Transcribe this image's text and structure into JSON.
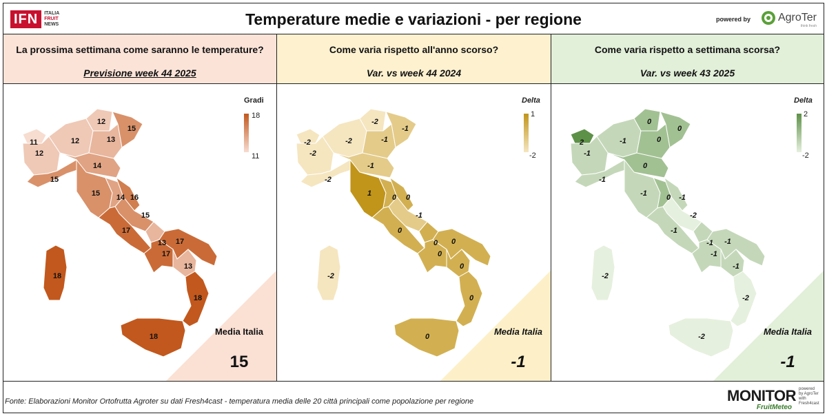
{
  "header": {
    "logo_text": "IFN",
    "logo_sub": [
      "ITALIA",
      "FRUIT",
      "NEWS"
    ],
    "title": "Temperature medie e variazioni - per regione",
    "powered_by": "powered by",
    "brand": "AgroTer",
    "brand_tagline": "think fresh"
  },
  "panels": [
    {
      "question": "La prossima settimana come saranno le temperature?",
      "subtitle": "Previsione week 44 2025",
      "legend_title": "Gradi",
      "legend_max": "18",
      "legend_min": "11",
      "media_label": "Media Italia",
      "media_value": "15",
      "colors": {
        "header": "#fbe3d8",
        "corner": "#fbe0d4",
        "low": "#f7dcd0",
        "high": "#c2581d"
      }
    },
    {
      "question": "Come varia rispetto all'anno scorso?",
      "subtitle": "Var. vs week 44 2024",
      "legend_title": "Delta",
      "legend_max": "1",
      "legend_min": "-2",
      "media_label": "Media Italia",
      "media_value": "-1",
      "colors": {
        "header": "#fdf1d0",
        "corner": "#fdf0c8",
        "low": "#f5e6c0",
        "high": "#c1951a"
      }
    },
    {
      "question": "Come varia rispetto a settimana scorsa?",
      "subtitle": "Var. vs week 43 2025",
      "legend_title": "Delta",
      "legend_max": "2",
      "legend_min": "-2",
      "media_label": "Media Italia",
      "media_value": "-1",
      "colors": {
        "header": "#e2efd9",
        "corner": "#e2efd9",
        "low": "#e6f0de",
        "high": "#5e9148"
      }
    }
  ],
  "regions": [
    {
      "name": "Valle d'Aosta",
      "temp": 11,
      "var_year": -2,
      "var_week": 2
    },
    {
      "name": "Piemonte",
      "temp": 12,
      "var_year": -2,
      "var_week": -1
    },
    {
      "name": "Lombardia",
      "temp": 12,
      "var_year": -2,
      "var_week": -1
    },
    {
      "name": "Trentino-Alto Adige",
      "temp": 12,
      "var_year": -2,
      "var_week": 0
    },
    {
      "name": "Veneto",
      "temp": 13,
      "var_year": -1,
      "var_week": 0
    },
    {
      "name": "Friuli-Venezia Giulia",
      "temp": 15,
      "var_year": -1,
      "var_week": 0
    },
    {
      "name": "Liguria",
      "temp": 15,
      "var_year": -2,
      "var_week": -1
    },
    {
      "name": "Emilia-Romagna",
      "temp": 14,
      "var_year": -1,
      "var_week": 0
    },
    {
      "name": "Toscana",
      "temp": 15,
      "var_year": 1,
      "var_week": -1
    },
    {
      "name": "Umbria",
      "temp": 14,
      "var_year": 0,
      "var_week": 0
    },
    {
      "name": "Marche",
      "temp": 16,
      "var_year": 0,
      "var_week": -1
    },
    {
      "name": "Abruzzo",
      "temp": 15,
      "var_year": -1,
      "var_week": -2
    },
    {
      "name": "Lazio",
      "temp": 17,
      "var_year": 0,
      "var_week": -1
    },
    {
      "name": "Molise",
      "temp": 13,
      "var_year": 0,
      "var_week": -1
    },
    {
      "name": "Campania",
      "temp": 17,
      "var_year": 0,
      "var_week": -1
    },
    {
      "name": "Puglia",
      "temp": 17,
      "var_year": 0,
      "var_week": -1
    },
    {
      "name": "Basilicata",
      "temp": 13,
      "var_year": 0,
      "var_week": -1
    },
    {
      "name": "Calabria",
      "temp": 18,
      "var_year": 0,
      "var_week": -2
    },
    {
      "name": "Sicilia",
      "temp": 18,
      "var_year": 0,
      "var_week": -2
    },
    {
      "name": "Sardegna",
      "temp": 18,
      "var_year": -2,
      "var_week": -2
    }
  ],
  "footer": {
    "source": "Fonte: Elaborazioni Monitor Ortofrutta Agroter su dati Fresh4cast - temperatura media delle 20 città principali come popolazione per regione",
    "monitor_title": "MONITOR",
    "monitor_sub": "FruitMeteo",
    "monitor_powered": "powered by AgroTer with Fresh4cast"
  }
}
